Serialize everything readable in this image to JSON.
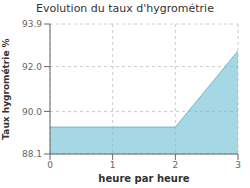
{
  "chart_data": {
    "type": "area",
    "title": "Evolution du taux d'hygrométrie",
    "xlabel": "heure par heure",
    "ylabel": "Taux hygrométrie %",
    "x": [
      0,
      2,
      3
    ],
    "values": [
      89.3,
      89.3,
      92.7
    ],
    "color": "#6bbcd4",
    "xlim": [
      0,
      3
    ],
    "ylim": [
      88.1,
      93.9
    ],
    "xticks": [
      0,
      1,
      2,
      3
    ],
    "yticks": [
      88.1,
      {
        "value": 90.0,
        "label": "90.0"
      },
      {
        "value": 92.0,
        "label": "92.0"
      },
      93.9
    ],
    "grid": true
  }
}
